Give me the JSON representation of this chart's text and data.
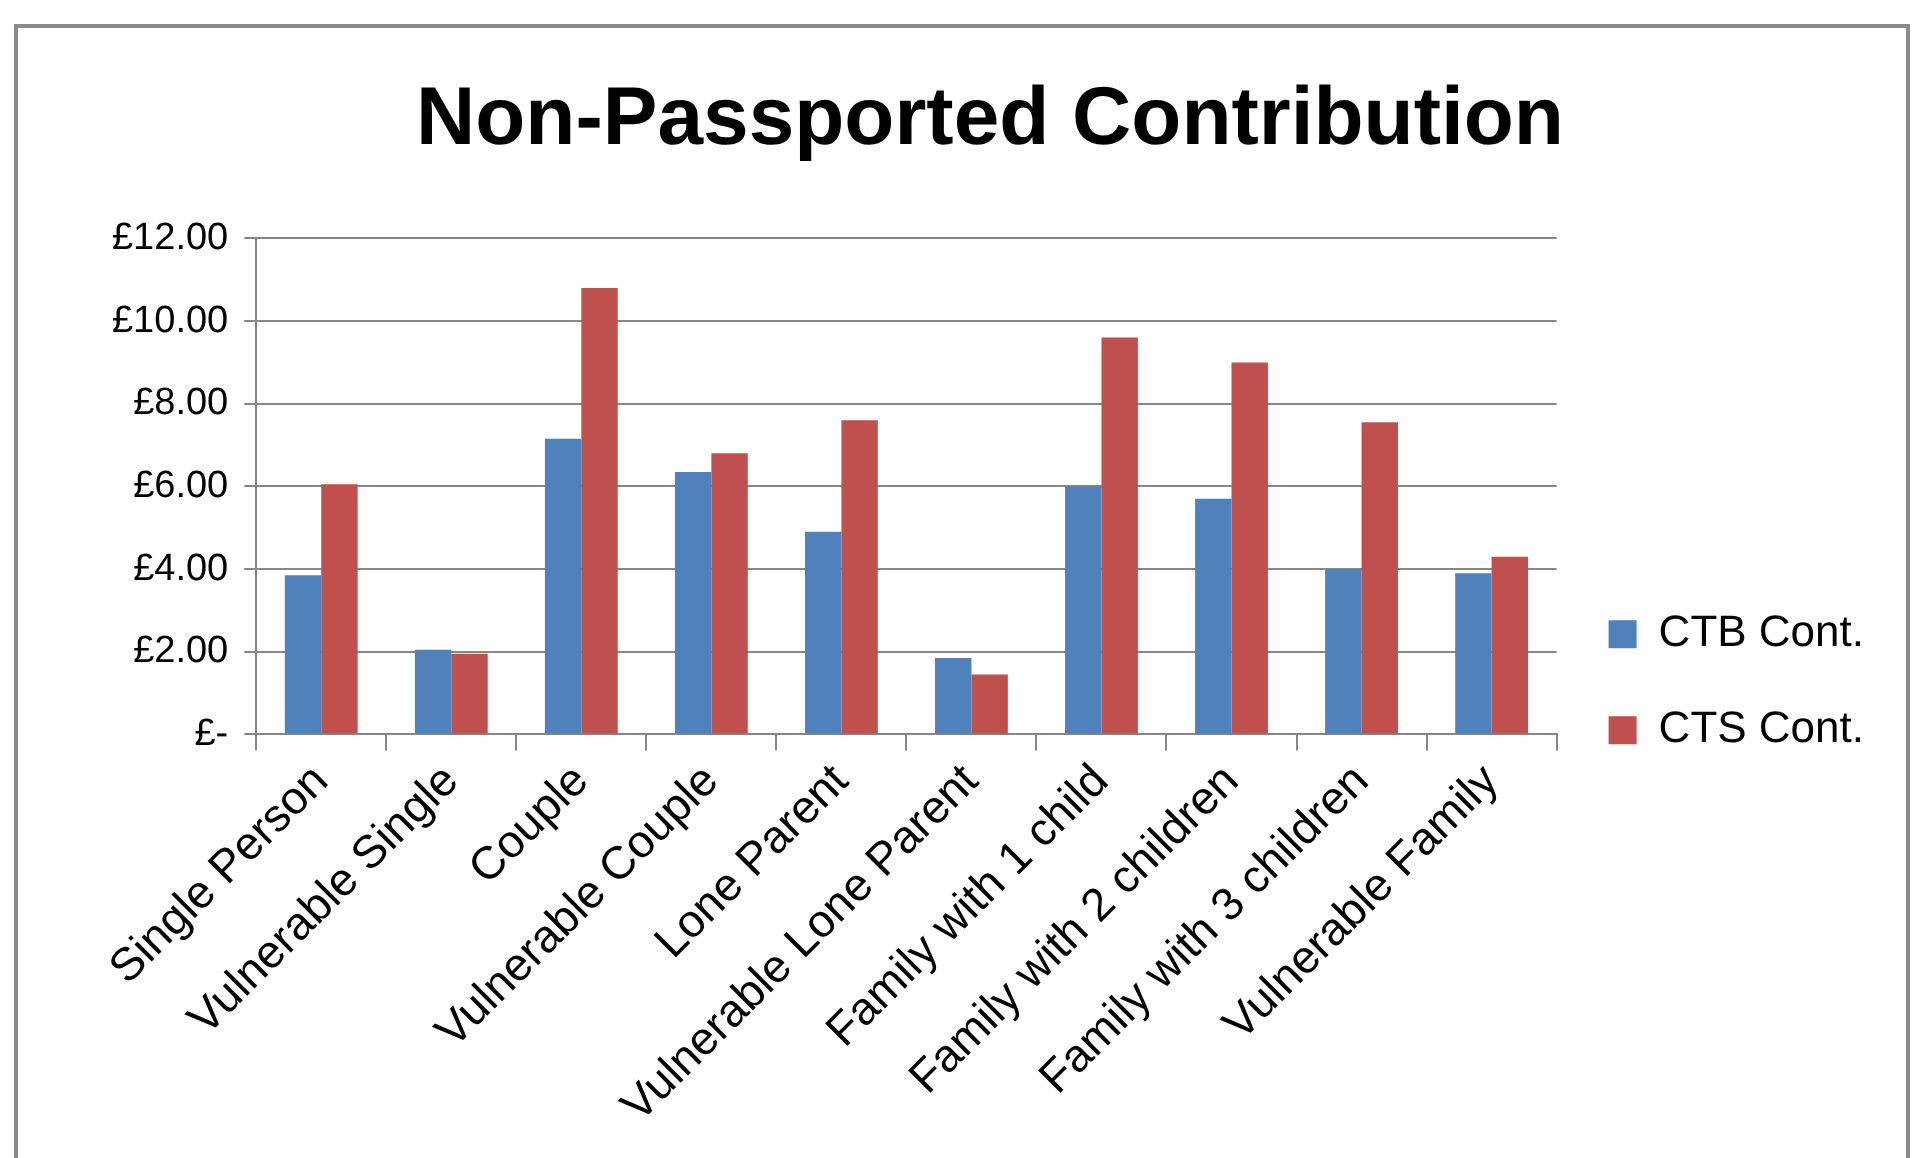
{
  "chart_data": {
    "type": "bar",
    "title": "Non-Passported Contribution",
    "categories": [
      "Single Person",
      "Vulnerable Single",
      "Couple",
      "Vulnerable Couple",
      "Lone Parent",
      "Vulnerable Lone Parent",
      "Family with 1 child",
      "Family with 2 children",
      "Family with 3 children",
      "Vulnerable Family"
    ],
    "series": [
      {
        "name": "CTB Cont.",
        "color": "#4f81bd",
        "values": [
          3.85,
          2.05,
          7.15,
          6.35,
          4.9,
          1.85,
          6.0,
          5.7,
          4.0,
          3.9
        ]
      },
      {
        "name": "CTS Cont.",
        "color": "#c0504d",
        "values": [
          6.05,
          1.95,
          10.8,
          6.8,
          7.6,
          1.45,
          9.6,
          9.0,
          7.55,
          4.3
        ]
      }
    ],
    "ylim": [
      0,
      12
    ],
    "yticks": [
      {
        "value": 0,
        "label": "£-"
      },
      {
        "value": 2,
        "label": "£2.00"
      },
      {
        "value": 4,
        "label": "£4.00"
      },
      {
        "value": 6,
        "label": "£6.00"
      },
      {
        "value": 8,
        "label": "£8.00"
      },
      {
        "value": 10,
        "label": "£10.00"
      },
      {
        "value": 12,
        "label": "£12.00"
      }
    ],
    "grid": "y",
    "legend": "right"
  }
}
